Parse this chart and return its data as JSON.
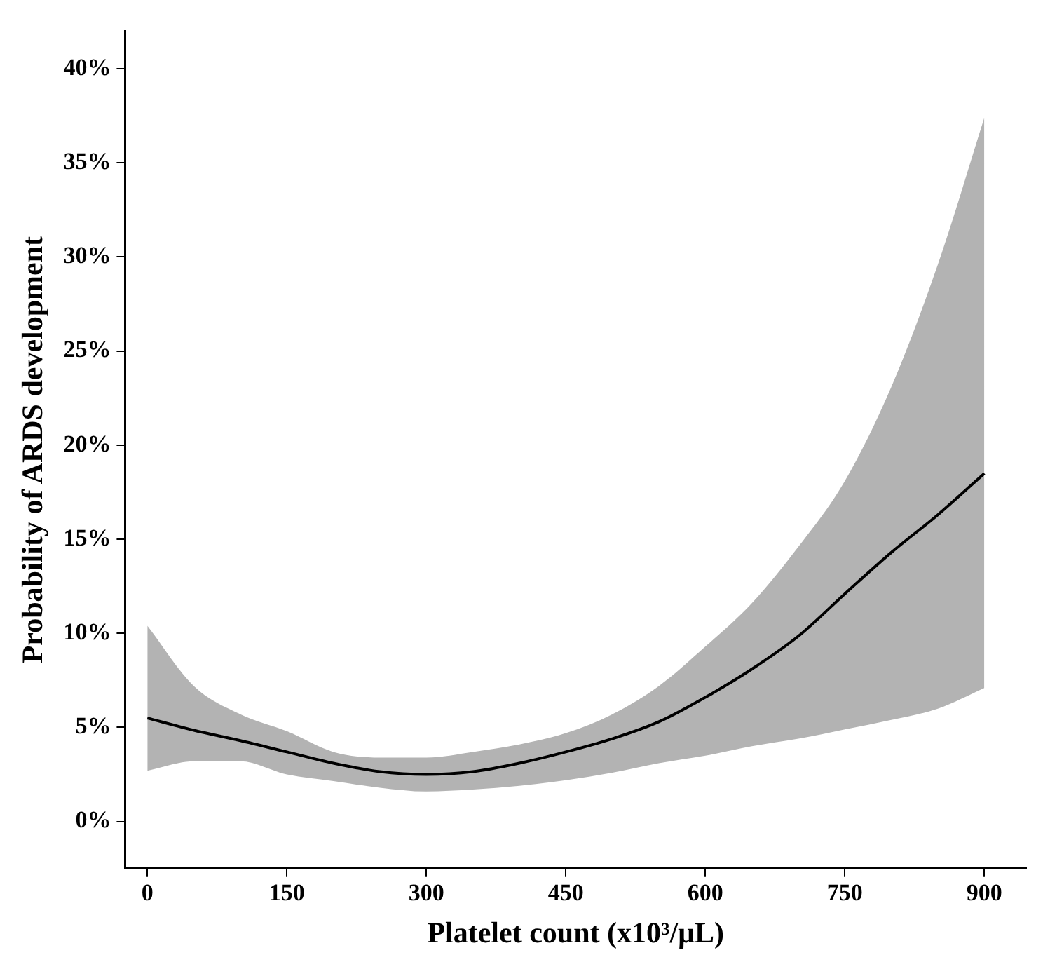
{
  "chart_data": {
    "type": "line",
    "xlabel": "Platelet count (x10³/μL)",
    "ylabel": "Probability of ARDS development",
    "x": [
      0,
      50,
      100,
      150,
      200,
      250,
      300,
      350,
      400,
      450,
      500,
      550,
      600,
      650,
      700,
      750,
      800,
      850,
      900
    ],
    "series": [
      {
        "color": "#000000",
        "values": [
          5.5,
          4.85,
          4.3,
          3.7,
          3.1,
          2.65,
          2.5,
          2.65,
          3.1,
          3.7,
          4.4,
          5.3,
          6.6,
          8.1,
          9.85,
          12.1,
          14.3,
          16.3,
          18.5
        ],
        "lower": [
          2.7,
          3.2,
          3.2,
          2.5,
          2.15,
          1.8,
          1.6,
          1.7,
          1.9,
          2.2,
          2.6,
          3.1,
          3.5,
          4.0,
          4.4,
          4.9,
          5.4,
          6.0,
          7.1
        ],
        "upper": [
          10.4,
          7.2,
          5.7,
          4.8,
          3.7,
          3.4,
          3.4,
          3.7,
          4.1,
          4.7,
          5.7,
          7.2,
          9.3,
          11.6,
          14.6,
          18.1,
          23.1,
          29.6,
          37.4
        ]
      }
    ],
    "xlim": [
      -24,
      945
    ],
    "xticks": [
      0,
      150,
      300,
      450,
      600,
      750,
      900
    ],
    "ylim": [
      -2.5,
      42
    ],
    "yticks": [
      {
        "value": 0,
        "label": "0%"
      },
      {
        "value": 5,
        "label": "5%"
      },
      {
        "value": 10,
        "label": "10%"
      },
      {
        "value": 15,
        "label": "15%"
      },
      {
        "value": 20,
        "label": "20%"
      },
      {
        "value": 25,
        "label": "25%"
      },
      {
        "value": 30,
        "label": "30%"
      },
      {
        "value": 35,
        "label": "35%"
      },
      {
        "value": 40,
        "label": "40%"
      }
    ],
    "grid": false,
    "legend": false,
    "marker": "none",
    "line_style": "solid"
  }
}
